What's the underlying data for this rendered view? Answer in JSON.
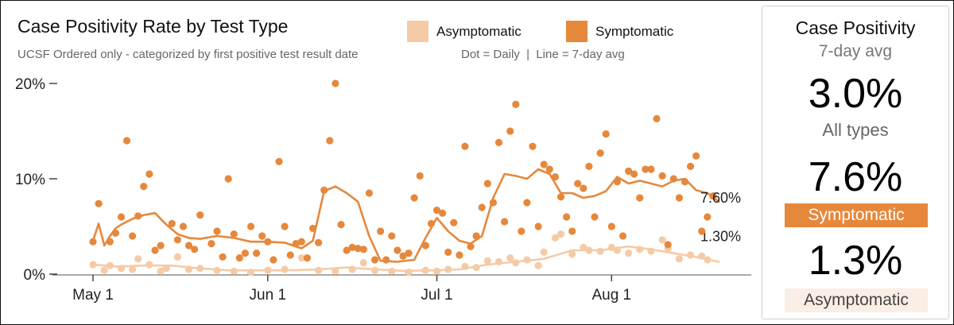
{
  "header": {
    "title": "Case Positivity Rate by Test Type",
    "subtitle": "UCSF Ordered only - categorized by first positive test result date",
    "note": "Dot = Daily  |  Line = 7-day avg"
  },
  "legend": [
    {
      "label": "Asymptomatic",
      "color": "#f5cba7"
    },
    {
      "label": "Symptomatic",
      "color": "#e6883c"
    }
  ],
  "panel": {
    "title": "Case Positivity",
    "subtitle": "7-day avg",
    "all_value": "3.0%",
    "all_label": "All types",
    "symptomatic_value": "7.6%",
    "symptomatic_label": "Symptomatic",
    "asymptomatic_value": "1.3%",
    "asymptomatic_label": "Asymptomatic"
  },
  "chart_data": {
    "type": "scatter",
    "x_axis": {
      "type": "date",
      "start": "2020-04-28",
      "end": "2020-08-20",
      "ticks": [
        {
          "date": "2020-05-01",
          "label": "May 1"
        },
        {
          "date": "2020-06-01",
          "label": "Jun 1"
        },
        {
          "date": "2020-07-01",
          "label": "Jul 1"
        },
        {
          "date": "2020-08-01",
          "label": "Aug 1"
        }
      ]
    },
    "y_axis": {
      "min": 0,
      "max": 20,
      "unit": "%",
      "ticks": [
        {
          "value": 0,
          "label": "0%"
        },
        {
          "value": 10,
          "label": "10%"
        },
        {
          "value": 20,
          "label": "20%"
        }
      ]
    },
    "grid": false,
    "series": [
      {
        "name": "Symptomatic",
        "color": "#e6883c",
        "end_label": "7.60%",
        "dots": [
          [
            "2020-05-01",
            3.4
          ],
          [
            "2020-05-02",
            7.4
          ],
          [
            "2020-05-04",
            3.4
          ],
          [
            "2020-05-05",
            4.3
          ],
          [
            "2020-05-06",
            6
          ],
          [
            "2020-05-07",
            14
          ],
          [
            "2020-05-08",
            4
          ],
          [
            "2020-05-09",
            6.1
          ],
          [
            "2020-05-10",
            9.2
          ],
          [
            "2020-05-11",
            10.5
          ],
          [
            "2020-05-12",
            2.5
          ],
          [
            "2020-05-13",
            3
          ],
          [
            "2020-05-15",
            5.3
          ],
          [
            "2020-05-16",
            3.6
          ],
          [
            "2020-05-17",
            5
          ],
          [
            "2020-05-18",
            3
          ],
          [
            "2020-05-19",
            2.6
          ],
          [
            "2020-05-20",
            6.2
          ],
          [
            "2020-05-22",
            3.2
          ],
          [
            "2020-05-23",
            4.5
          ],
          [
            "2020-05-24",
            1.8
          ],
          [
            "2020-05-25",
            10
          ],
          [
            "2020-05-26",
            4.2
          ],
          [
            "2020-05-27",
            1.7
          ],
          [
            "2020-05-28",
            2.2
          ],
          [
            "2020-05-29",
            5
          ],
          [
            "2020-05-30",
            2.2
          ],
          [
            "2020-05-31",
            4
          ],
          [
            "2020-06-01",
            3.4
          ],
          [
            "2020-06-02",
            1.5
          ],
          [
            "2020-06-03",
            11.8
          ],
          [
            "2020-06-04",
            5
          ],
          [
            "2020-06-05",
            2
          ],
          [
            "2020-06-06",
            3.2
          ],
          [
            "2020-06-07",
            3.4
          ],
          [
            "2020-06-08",
            1.7
          ],
          [
            "2020-06-09",
            4.8
          ],
          [
            "2020-06-10",
            3.3
          ],
          [
            "2020-06-11",
            8.8
          ],
          [
            "2020-06-12",
            14
          ],
          [
            "2020-06-13",
            20
          ],
          [
            "2020-06-14",
            5.2
          ],
          [
            "2020-06-15",
            2.5
          ],
          [
            "2020-06-16",
            2.8
          ],
          [
            "2020-06-17",
            2.7
          ],
          [
            "2020-06-18",
            2.6
          ],
          [
            "2020-06-19",
            8.5
          ],
          [
            "2020-06-20",
            1.5
          ],
          [
            "2020-06-21",
            4.5
          ],
          [
            "2020-06-22",
            1.5
          ],
          [
            "2020-06-23",
            4
          ],
          [
            "2020-06-24",
            2.5
          ],
          [
            "2020-06-25",
            1.9
          ],
          [
            "2020-06-26",
            2.2
          ],
          [
            "2020-06-27",
            8
          ],
          [
            "2020-06-28",
            10.3
          ],
          [
            "2020-06-29",
            3
          ],
          [
            "2020-06-30",
            5.3
          ],
          [
            "2020-07-01",
            6.7
          ],
          [
            "2020-07-02",
            6.4
          ],
          [
            "2020-07-03",
            2.3
          ],
          [
            "2020-07-04",
            5.4
          ],
          [
            "2020-07-05",
            2
          ],
          [
            "2020-07-06",
            13.4
          ],
          [
            "2020-07-07",
            2.9
          ],
          [
            "2020-07-08",
            4
          ],
          [
            "2020-07-09",
            7
          ],
          [
            "2020-07-10",
            9.5
          ],
          [
            "2020-07-11",
            7.5
          ],
          [
            "2020-07-12",
            13.8
          ],
          [
            "2020-07-13",
            5.5
          ],
          [
            "2020-07-14",
            15
          ],
          [
            "2020-07-15",
            17.8
          ],
          [
            "2020-07-16",
            4.5
          ],
          [
            "2020-07-17",
            7.5
          ],
          [
            "2020-07-18",
            13.4
          ],
          [
            "2020-07-19",
            5
          ],
          [
            "2020-07-20",
            11.5
          ],
          [
            "2020-07-21",
            11
          ],
          [
            "2020-07-22",
            10.2
          ],
          [
            "2020-07-23",
            8.1
          ],
          [
            "2020-07-24",
            6
          ],
          [
            "2020-07-25",
            4.5
          ],
          [
            "2020-07-26",
            9.5
          ],
          [
            "2020-07-27",
            9
          ],
          [
            "2020-07-28",
            11.3
          ],
          [
            "2020-07-29",
            6
          ],
          [
            "2020-07-30",
            12.7
          ],
          [
            "2020-07-31",
            14.7
          ],
          [
            "2020-08-01",
            5
          ],
          [
            "2020-08-02",
            9.7
          ],
          [
            "2020-08-03",
            4
          ],
          [
            "2020-08-04",
            10.8
          ],
          [
            "2020-08-05",
            10.5
          ],
          [
            "2020-08-06",
            8
          ],
          [
            "2020-08-07",
            11
          ],
          [
            "2020-08-08",
            11
          ],
          [
            "2020-08-09",
            16.3
          ],
          [
            "2020-08-10",
            10.3
          ],
          [
            "2020-08-11",
            3.1
          ],
          [
            "2020-08-12",
            10
          ],
          [
            "2020-08-13",
            8
          ],
          [
            "2020-08-14",
            9.7
          ],
          [
            "2020-08-15",
            11.3
          ],
          [
            "2020-08-16",
            12.4
          ],
          [
            "2020-08-17",
            4.5
          ],
          [
            "2020-08-18",
            6
          ],
          [
            "2020-08-19",
            8.2
          ]
        ],
        "avg": [
          [
            "2020-05-01",
            3.5
          ],
          [
            "2020-05-02",
            5.3
          ],
          [
            "2020-05-03",
            3
          ],
          [
            "2020-05-04",
            4
          ],
          [
            "2020-05-05",
            4.8
          ],
          [
            "2020-05-06",
            5.2
          ],
          [
            "2020-05-08",
            5.8
          ],
          [
            "2020-05-10",
            6.2
          ],
          [
            "2020-05-12",
            6.4
          ],
          [
            "2020-05-14",
            5.2
          ],
          [
            "2020-05-16",
            4.2
          ],
          [
            "2020-05-18",
            3.8
          ],
          [
            "2020-05-20",
            3.7
          ],
          [
            "2020-05-23",
            4
          ],
          [
            "2020-05-26",
            3.8
          ],
          [
            "2020-05-29",
            3.4
          ],
          [
            "2020-06-01",
            3.4
          ],
          [
            "2020-06-04",
            3.3
          ],
          [
            "2020-06-07",
            2.7
          ],
          [
            "2020-06-09",
            3.5
          ],
          [
            "2020-06-11",
            8.7
          ],
          [
            "2020-06-13",
            9.2
          ],
          [
            "2020-06-15",
            8.5
          ],
          [
            "2020-06-17",
            7.6
          ],
          [
            "2020-06-19",
            4
          ],
          [
            "2020-06-21",
            1.4
          ],
          [
            "2020-06-24",
            1.3
          ],
          [
            "2020-06-27",
            1.5
          ],
          [
            "2020-06-29",
            3.8
          ],
          [
            "2020-07-01",
            5.9
          ],
          [
            "2020-07-03",
            4.5
          ],
          [
            "2020-07-05",
            3.5
          ],
          [
            "2020-07-07",
            3.2
          ],
          [
            "2020-07-09",
            4
          ],
          [
            "2020-07-11",
            8
          ],
          [
            "2020-07-13",
            10.5
          ],
          [
            "2020-07-15",
            10.3
          ],
          [
            "2020-07-17",
            10
          ],
          [
            "2020-07-19",
            11
          ],
          [
            "2020-07-21",
            10.5
          ],
          [
            "2020-07-23",
            8.5
          ],
          [
            "2020-07-25",
            8.5
          ],
          [
            "2020-07-27",
            8
          ],
          [
            "2020-07-29",
            8.2
          ],
          [
            "2020-07-31",
            8.7
          ],
          [
            "2020-08-02",
            10.2
          ],
          [
            "2020-08-04",
            9.5
          ],
          [
            "2020-08-06",
            9.8
          ],
          [
            "2020-08-08",
            9.5
          ],
          [
            "2020-08-10",
            9.2
          ],
          [
            "2020-08-12",
            9.8
          ],
          [
            "2020-08-14",
            10
          ],
          [
            "2020-08-16",
            8.8
          ],
          [
            "2020-08-18",
            8.5
          ],
          [
            "2020-08-20",
            7.6
          ]
        ]
      },
      {
        "name": "Asymptomatic",
        "color": "#f5cba7",
        "end_label": "1.30%",
        "dots": [
          [
            "2020-05-01",
            1
          ],
          [
            "2020-05-03",
            0.4
          ],
          [
            "2020-05-04",
            0.9
          ],
          [
            "2020-05-06",
            0.6
          ],
          [
            "2020-05-08",
            0.5
          ],
          [
            "2020-05-09",
            1.6
          ],
          [
            "2020-05-11",
            1
          ],
          [
            "2020-05-13",
            0.3
          ],
          [
            "2020-05-14",
            0.6
          ],
          [
            "2020-05-16",
            1.8
          ],
          [
            "2020-05-18",
            0.5
          ],
          [
            "2020-05-20",
            0.6
          ],
          [
            "2020-05-23",
            0.4
          ],
          [
            "2020-05-26",
            0.3
          ],
          [
            "2020-05-29",
            0.2
          ],
          [
            "2020-06-01",
            0.4
          ],
          [
            "2020-06-04",
            0.5
          ],
          [
            "2020-06-07",
            1.7
          ],
          [
            "2020-06-10",
            0.4
          ],
          [
            "2020-06-13",
            0.3
          ],
          [
            "2020-06-16",
            0.5
          ],
          [
            "2020-06-18",
            1.2
          ],
          [
            "2020-06-20",
            0.4
          ],
          [
            "2020-06-23",
            0.3
          ],
          [
            "2020-06-26",
            0.2
          ],
          [
            "2020-06-29",
            0.4
          ],
          [
            "2020-07-01",
            0.3
          ],
          [
            "2020-07-03",
            0.5
          ],
          [
            "2020-07-06",
            0.8
          ],
          [
            "2020-07-08",
            0.7
          ],
          [
            "2020-07-10",
            1.4
          ],
          [
            "2020-07-12",
            1.3
          ],
          [
            "2020-07-14",
            1.7
          ],
          [
            "2020-07-15",
            1.2
          ],
          [
            "2020-07-17",
            1.5
          ],
          [
            "2020-07-19",
            0.9
          ],
          [
            "2020-07-20",
            2.3
          ],
          [
            "2020-07-22",
            3.8
          ],
          [
            "2020-07-23",
            4.2
          ],
          [
            "2020-07-25",
            2.1
          ],
          [
            "2020-07-27",
            2.8
          ],
          [
            "2020-07-28",
            2.5
          ],
          [
            "2020-07-30",
            2.4
          ],
          [
            "2020-08-01",
            2.8
          ],
          [
            "2020-08-02",
            2.5
          ],
          [
            "2020-08-04",
            2.2
          ],
          [
            "2020-08-06",
            2.6
          ],
          [
            "2020-08-08",
            2.4
          ],
          [
            "2020-08-10",
            3.6
          ],
          [
            "2020-08-11",
            2.7
          ],
          [
            "2020-08-13",
            1.6
          ],
          [
            "2020-08-15",
            2
          ],
          [
            "2020-08-17",
            1.9
          ],
          [
            "2020-08-18",
            1.5
          ]
        ],
        "avg": [
          [
            "2020-05-01",
            1
          ],
          [
            "2020-05-05",
            0.8
          ],
          [
            "2020-05-10",
            0.9
          ],
          [
            "2020-05-15",
            0.9
          ],
          [
            "2020-05-20",
            0.6
          ],
          [
            "2020-05-25",
            0.4
          ],
          [
            "2020-05-31",
            0.4
          ],
          [
            "2020-06-05",
            0.4
          ],
          [
            "2020-06-10",
            0.5
          ],
          [
            "2020-06-15",
            0.7
          ],
          [
            "2020-06-20",
            0.5
          ],
          [
            "2020-06-25",
            0.35
          ],
          [
            "2020-07-01",
            0.4
          ],
          [
            "2020-07-05",
            0.5
          ],
          [
            "2020-07-10",
            1
          ],
          [
            "2020-07-15",
            1.3
          ],
          [
            "2020-07-20",
            1.6
          ],
          [
            "2020-07-25",
            2.5
          ],
          [
            "2020-07-30",
            2.5
          ],
          [
            "2020-08-04",
            2.9
          ],
          [
            "2020-08-08",
            2.6
          ],
          [
            "2020-08-12",
            2.2
          ],
          [
            "2020-08-16",
            1.8
          ],
          [
            "2020-08-20",
            1.3
          ]
        ]
      }
    ]
  }
}
